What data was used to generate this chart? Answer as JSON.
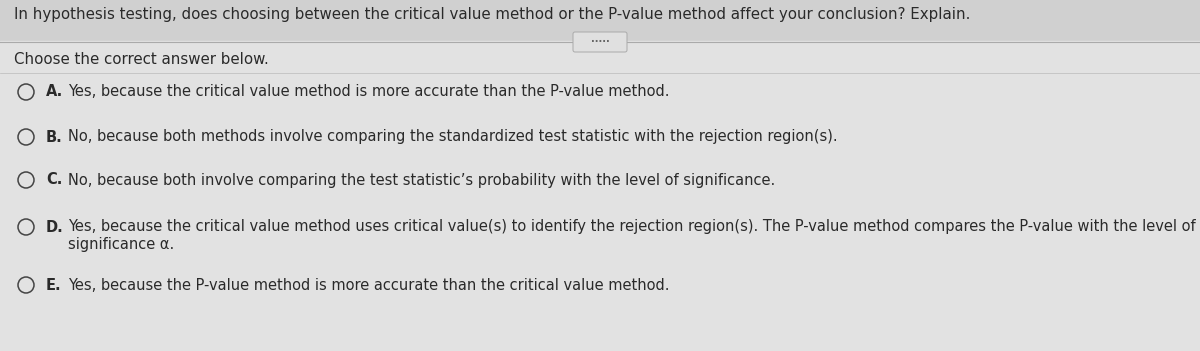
{
  "bg_color": "#e8e8e8",
  "top_strip_color": "#c8c8c8",
  "title_line": "In hypothesis testing, does choosing between the critical value method or the P-value method affect your conclusion? Explain.",
  "subtitle": "Choose the correct answer below.",
  "options": [
    {
      "label": "A.",
      "lines": [
        "Yes, because the critical value method is more accurate than the P-value method."
      ]
    },
    {
      "label": "B.",
      "lines": [
        "No, because both methods involve comparing the standardized test statistic with the rejection region(s)."
      ]
    },
    {
      "label": "C.",
      "lines": [
        "No, because both involve comparing the test statistic’s probability with the level of significance."
      ]
    },
    {
      "label": "D.",
      "lines": [
        "Yes, because the critical value method uses critical value(s) to identify the rejection region(s). The P-value method compares the P-value with the level of",
        "significance α."
      ]
    },
    {
      "label": "E.",
      "lines": [
        "Yes, because the P-value method is more accurate than the critical value method."
      ]
    }
  ],
  "font_size_title": 10.8,
  "font_size_subtitle": 10.8,
  "font_size_options": 10.5,
  "text_color": "#2a2a2a",
  "circle_edge_color": "#444444",
  "line_color": "#999999",
  "separator_line_color": "#aaaaaa",
  "title_bg": "#dcdcdc",
  "content_bg": "#e4e4e4"
}
